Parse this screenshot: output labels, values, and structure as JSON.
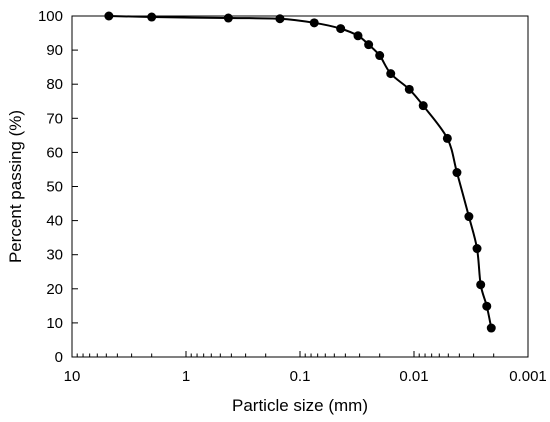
{
  "chart_data": {
    "type": "line",
    "title": "",
    "xlabel": "Particle size (mm)",
    "ylabel": "Percent passing (%)",
    "x_scale": "log",
    "x_reversed": true,
    "xlim": [
      10,
      0.001
    ],
    "ylim": [
      0,
      100
    ],
    "x_ticks": [
      10,
      1,
      0.1,
      0.01,
      0.001
    ],
    "x_tick_labels": [
      "10",
      "1",
      "0.1",
      "0.01",
      "0.001"
    ],
    "y_ticks": [
      0,
      10,
      20,
      30,
      40,
      50,
      60,
      70,
      80,
      90,
      100
    ],
    "y_tick_labels": [
      "0",
      "10",
      "20",
      "30",
      "40",
      "50",
      "60",
      "70",
      "80",
      "90",
      "100"
    ],
    "grid": false,
    "legend": "none",
    "series": [
      {
        "color": "#000000",
        "x": [
          4.75,
          2.0,
          0.425,
          0.15,
          0.075,
          0.044,
          0.031,
          0.025,
          0.02,
          0.016,
          0.011,
          0.0083,
          0.0051,
          0.0042,
          0.0033,
          0.0028,
          0.0026,
          0.0023,
          0.0021
        ],
        "y": [
          100,
          99.7,
          99.4,
          99.2,
          98,
          96.3,
          94.2,
          91.6,
          88.4,
          83.1,
          78.5,
          73.7,
          64.1,
          54.1,
          41.2,
          31.8,
          21.2,
          14.9,
          8.5
        ]
      }
    ]
  }
}
